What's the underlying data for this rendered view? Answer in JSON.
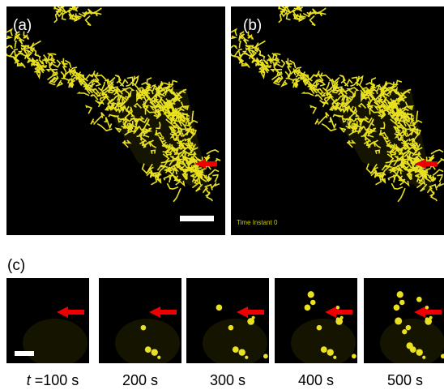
{
  "panels": [
    {
      "label": "(a)"
    },
    {
      "label": "(b)",
      "caption": "Time Instant 0"
    }
  ],
  "panel_c": {
    "label": "(c)",
    "time_variable": "t",
    "frames": [
      "=100 s",
      "200 s",
      "300 s",
      "400 s",
      "500 s"
    ]
  }
}
